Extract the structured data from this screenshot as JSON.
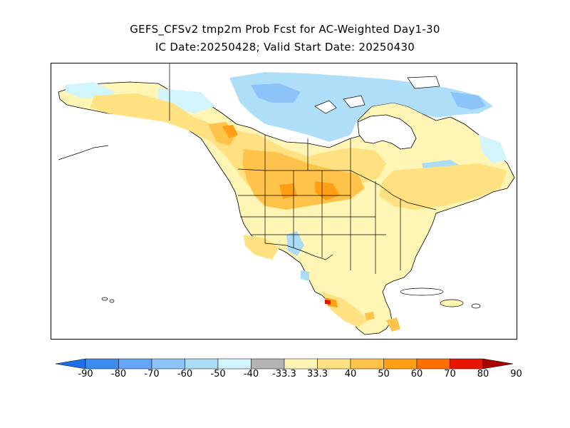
{
  "title": {
    "line1": "GEFS_CFSv2 tmp2m Prob Fcst for AC-Weighted Day1-30",
    "line2": "IC Date:20250428; Valid Start Date: 20250430"
  },
  "colorbar": {
    "segments": [
      {
        "color": "#1e6ee6"
      },
      {
        "color": "#3c8cf0"
      },
      {
        "color": "#64a5f5"
      },
      {
        "color": "#8cc3f8"
      },
      {
        "color": "#aadcf8"
      },
      {
        "color": "#d2f5fc"
      },
      {
        "color": "#b4b4b4"
      },
      {
        "color": "#fff5b4"
      },
      {
        "color": "#ffe182"
      },
      {
        "color": "#ffc34b"
      },
      {
        "color": "#ffa014"
      },
      {
        "color": "#ff6e00"
      },
      {
        "color": "#e61400"
      },
      {
        "color": "#aa0000"
      }
    ],
    "labels": [
      "-90",
      "-80",
      "-70",
      "-60",
      "-50",
      "-40",
      "-33.3",
      "33.3",
      "40",
      "50",
      "60",
      "70",
      "80",
      "90"
    ]
  }
}
